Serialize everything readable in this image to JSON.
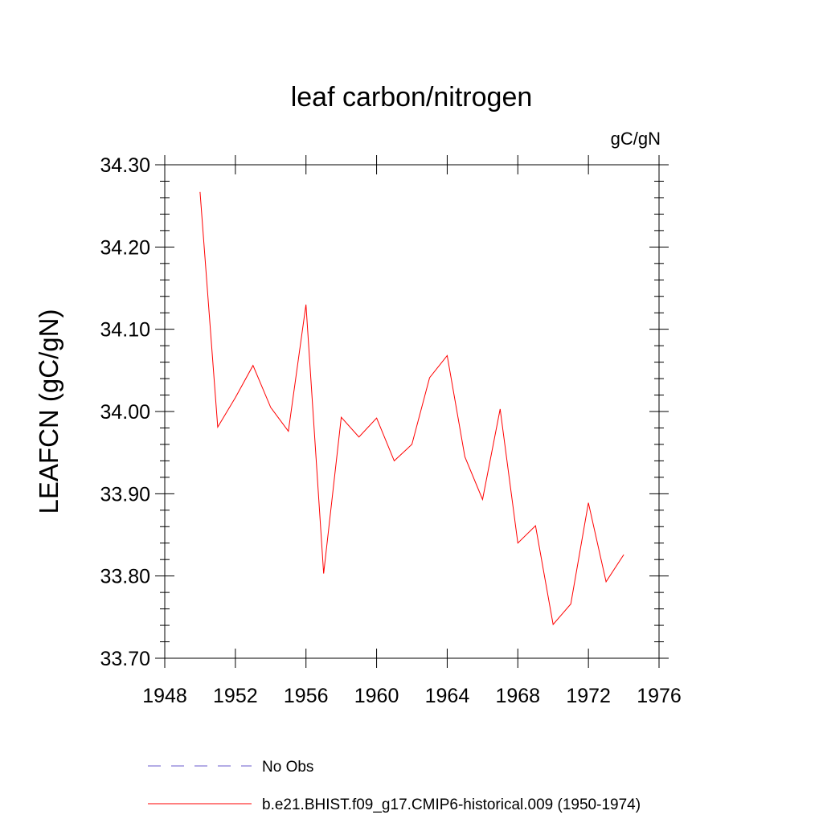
{
  "chart_data": {
    "type": "line",
    "title": "leaf carbon/nitrogen",
    "units": "gC/gN",
    "ylabel": "LEAFCN  (gC/gN)",
    "xlabel": "",
    "xlim": [
      1948,
      1976
    ],
    "ylim": [
      33.7,
      34.3
    ],
    "x_ticks": [
      1948,
      1952,
      1956,
      1960,
      1964,
      1968,
      1972,
      1976
    ],
    "x_tick_labels": [
      "1948",
      "1952",
      "1956",
      "1960",
      "1964",
      "1968",
      "1972",
      "1976"
    ],
    "y_ticks": [
      33.7,
      33.8,
      33.9,
      34.0,
      34.1,
      34.2,
      34.3
    ],
    "y_tick_labels": [
      "33.70",
      "33.80",
      "33.90",
      "34.00",
      "34.10",
      "34.20",
      "34.30"
    ],
    "grid": false,
    "legend_position": "bottom",
    "series": [
      {
        "name": "b.e21.BHIST.f09_g17.CMIP6-historical.009 (1950-1974)",
        "color": "#ff0000",
        "style": "solid",
        "x": [
          1950,
          1951,
          1952,
          1953,
          1954,
          1955,
          1956,
          1957,
          1958,
          1959,
          1960,
          1961,
          1962,
          1963,
          1964,
          1965,
          1966,
          1967,
          1968,
          1969,
          1970,
          1971,
          1972,
          1973,
          1974
        ],
        "y": [
          34.267,
          33.981,
          34.017,
          34.056,
          34.005,
          33.976,
          34.13,
          33.803,
          33.993,
          33.969,
          33.992,
          33.94,
          33.96,
          34.041,
          34.068,
          33.945,
          33.893,
          34.003,
          33.84,
          33.861,
          33.741,
          33.766,
          33.889,
          33.793,
          33.826
        ]
      }
    ],
    "legend": [
      {
        "label": "No Obs",
        "color": "#6a5acd",
        "style": "dashed"
      },
      {
        "label": "b.e21.BHIST.f09_g17.CMIP6-historical.009 (1950-1974)",
        "color": "#ff0000",
        "style": "solid"
      }
    ]
  }
}
